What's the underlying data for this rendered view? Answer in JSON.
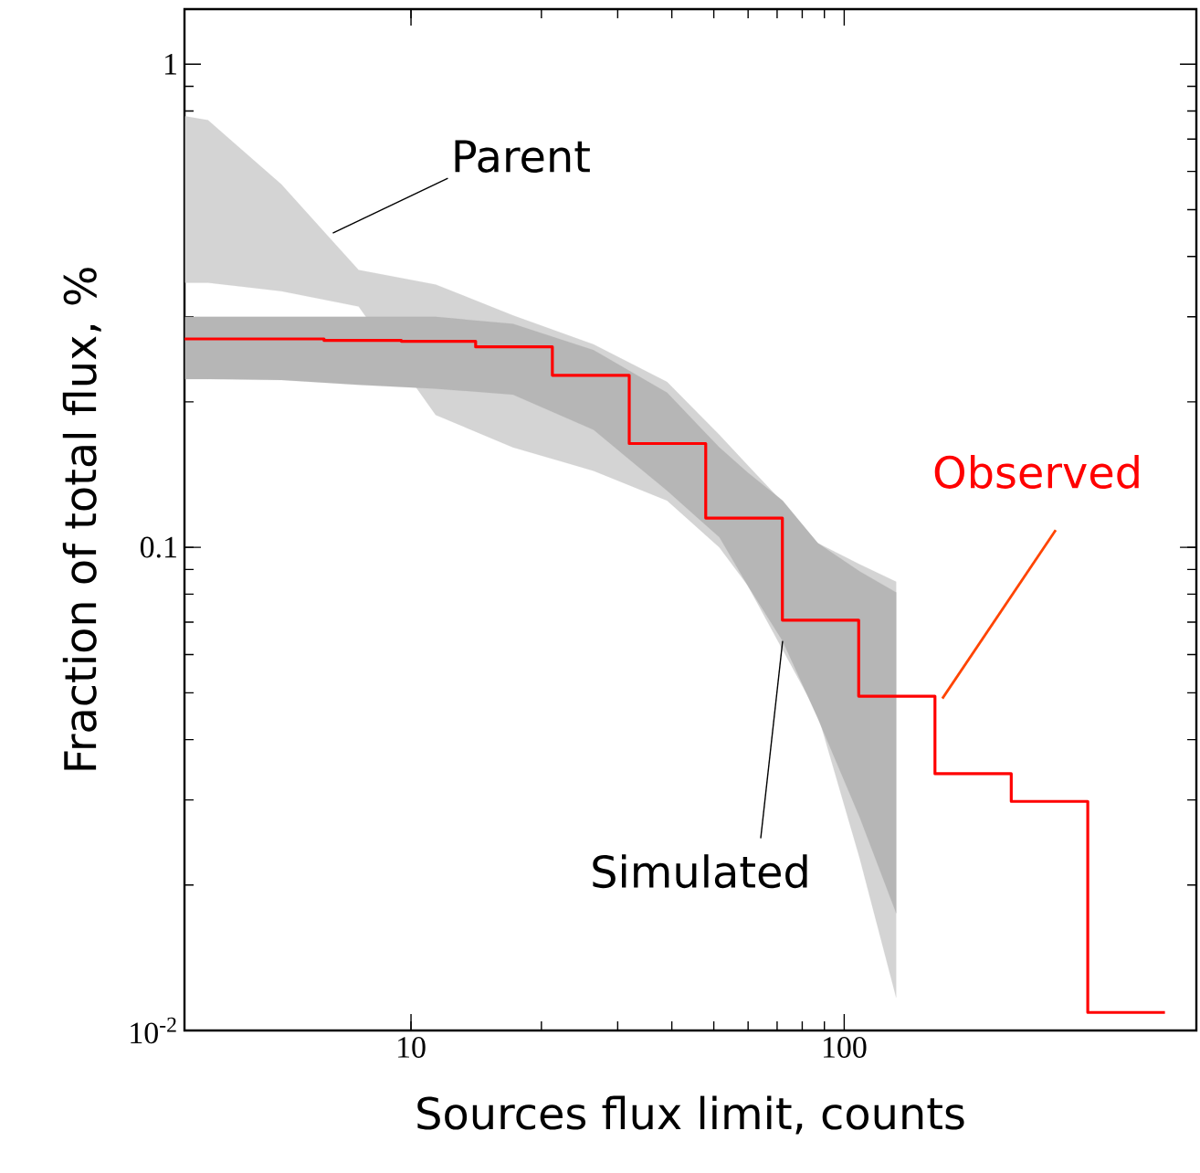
{
  "chart_data": {
    "type": "area",
    "xlabel": "Sources flux limit, counts",
    "ylabel": "Fraction of total flux, %",
    "log": "xy",
    "xlim": [
      3,
      650
    ],
    "ylim": [
      0.01,
      1.3
    ],
    "xticks": [
      10,
      100
    ],
    "annotations": [
      {
        "text": "Parent",
        "x": 6.6,
        "y": 0.447
      },
      {
        "text": "Simulated",
        "x": 72.1,
        "y": 0.064
      }
    ],
    "yticks": [
      {
        "value": 0.01,
        "label": "10$^{-2}$"
      },
      0.1,
      1
    ],
    "series": [
      {
        "color": "#d4d4d4",
        "x": [
          3.01,
          3.4,
          5.02,
          7.57,
          11.4,
          17.2,
          26.4,
          39,
          51.5,
          59.8,
          72.1,
          86.9,
          108.6,
          131.8
        ],
        "values": [
          null,
          null,
          null,
          null,
          null,
          null,
          null,
          null,
          null,
          null,
          null,
          null,
          null,
          null
        ],
        "upper": [
          0.78,
          0.766,
          0.564,
          0.375,
          0.35,
          0.302,
          0.263,
          0.22,
          0.171,
          0.148,
          0.124,
          0.102,
          0.0922,
          0.0849
        ],
        "lower": [
          0.353,
          0.353,
          0.339,
          0.315,
          0.188,
          0.161,
          0.144,
          0.125,
          0.1,
          0.0835,
          0.0614,
          0.0451,
          0.0227,
          0.0117
        ]
      },
      {
        "color": "#b6b6b6",
        "x": [
          3.01,
          3.4,
          5.02,
          7.57,
          11.4,
          17.2,
          26.4,
          39,
          51.5,
          59.8,
          72.1,
          86.9,
          108.6,
          131.8
        ],
        "values": [
          null,
          null,
          null,
          null,
          null,
          null,
          null,
          null,
          null,
          null,
          null,
          null,
          null,
          null
        ],
        "upper": [
          0.3,
          0.3,
          0.3,
          0.3,
          0.3,
          0.29,
          0.256,
          0.209,
          0.161,
          0.143,
          0.125,
          0.102,
          0.0892,
          0.0807
        ],
        "lower": [
          0.223,
          0.223,
          0.222,
          0.217,
          0.213,
          0.207,
          0.175,
          0.131,
          0.105,
          0.0835,
          0.064,
          0.0443,
          0.0276,
          0.0175
        ]
      },
      {
        "name": "Observed",
        "type": "step",
        "color": "#ff0000",
        "x": [
          3,
          6.3,
          9.5,
          14.1,
          21.2,
          31.9,
          47.9,
          72,
          108,
          162,
          243,
          365,
          550
        ],
        "values": [
          0.27,
          0.268,
          0.267,
          0.26,
          0.227,
          0.164,
          0.115,
          0.0707,
          0.0492,
          0.034,
          0.0298,
          0.0109,
          0.0109
        ]
      }
    ]
  }
}
